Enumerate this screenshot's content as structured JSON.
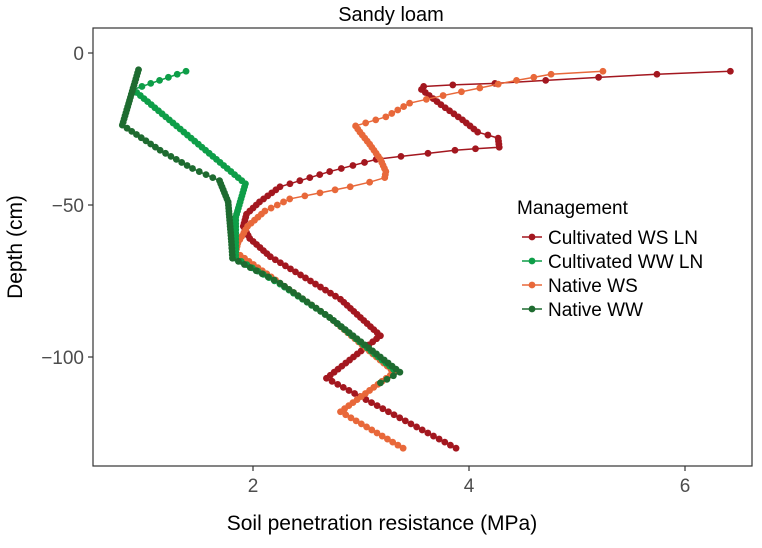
{
  "chart_data": {
    "type": "line",
    "title": "Sandy loam",
    "xlabel": "Soil penetration resistance (MPa)",
    "ylabel": "Depth (cm)",
    "xlim": [
      0.52,
      6.6
    ],
    "ylim": [
      -137,
      8
    ],
    "xticks": [
      2,
      4,
      6
    ],
    "yticks": [
      0,
      -50,
      -100
    ],
    "ytick_labels": [
      "0",
      "−50",
      "−100"
    ],
    "grid": false,
    "legend": {
      "title": "Management",
      "position": "right"
    },
    "series": [
      {
        "name": "Cultivated WS LN",
        "color": "#A3171F",
        "x": [
          6.42,
          5.74,
          5.2,
          4.71,
          4.24,
          3.85,
          3.58,
          3.56,
          3.74,
          3.94,
          4.08,
          4.27,
          4.28,
          4.06,
          3.87,
          3.62,
          3.37,
          3.14,
          2.71,
          2.25,
          2.06,
          1.94,
          1.91,
          1.97,
          2.16,
          2.44,
          2.81,
          3.18,
          2.68,
          3.88
        ],
        "y": [
          -6,
          -7,
          -8,
          -9,
          -10,
          -10.5,
          -11,
          -12,
          -17,
          -22,
          -26,
          -28,
          -31,
          -31.5,
          -32,
          -33,
          -34,
          -35,
          -39,
          -44,
          -49,
          -53,
          -57,
          -61,
          -67,
          -73,
          -81,
          -93,
          -107,
          -130
        ]
      },
      {
        "name": "Cultivated WW LN",
        "color": "#0E9E48",
        "x": [
          1.38,
          0.89,
          1.93,
          1.84,
          1.84,
          2.25,
          2.71,
          3.3
        ],
        "y": [
          -6,
          -12,
          -43,
          -54,
          -67.5,
          -76,
          -87,
          -104
        ]
      },
      {
        "name": "Native WS",
        "color": "#E8683A",
        "x": [
          5.24,
          4.76,
          4.44,
          4.1,
          3.76,
          3.45,
          3.23,
          2.95,
          2.99,
          3.08,
          3.18,
          3.23,
          3.22,
          3.08,
          2.9,
          2.62,
          2.34,
          2.11,
          1.95,
          1.86,
          1.84,
          2.25,
          2.71,
          3.31,
          2.81,
          3.39
        ],
        "y": [
          -6,
          -7,
          -9,
          -11.5,
          -14,
          -16.5,
          -21,
          -24,
          -26,
          -30,
          -35,
          -39,
          -41,
          -42.5,
          -44,
          -46,
          -48,
          -52,
          -57,
          -62.5,
          -65.5,
          -75.7,
          -87,
          -105,
          -118,
          -130
        ]
      },
      {
        "name": "Native WW",
        "color": "#1E6B30",
        "x": [
          0.94,
          0.79,
          1.14,
          1.44,
          1.69,
          1.77,
          1.8,
          1.81,
          2.25,
          2.71,
          3.36,
          3.18
        ],
        "y": [
          -5.5,
          -23.7,
          -32,
          -38,
          -42,
          -49,
          -62,
          -67.5,
          -75.7,
          -87,
          -105,
          -108.5
        ]
      }
    ]
  }
}
